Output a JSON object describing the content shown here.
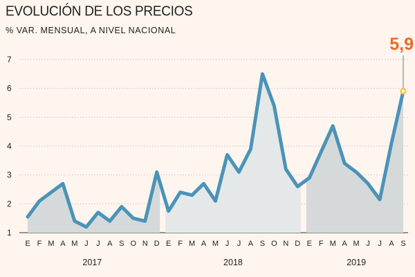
{
  "header": {
    "title": "EVOLUCIÓN DE LOS PRECIOS",
    "subtitle": "% VAR. MENSUAL, A NIVEL NACIONAL"
  },
  "chart_data": {
    "type": "area",
    "title": "EVOLUCIÓN DE LOS PRECIOS",
    "subtitle": "% VAR. MENSUAL, A NIVEL NACIONAL",
    "x": [
      "E",
      "F",
      "M",
      "A",
      "M",
      "J",
      "J",
      "A",
      "S",
      "O",
      "N",
      "D",
      "E",
      "F",
      "M",
      "A",
      "M",
      "J",
      "J",
      "A",
      "S",
      "O",
      "N",
      "D",
      "E",
      "F",
      "M",
      "A",
      "M",
      "J",
      "J",
      "A",
      "S"
    ],
    "years": [
      {
        "label": "2017",
        "start": 0,
        "end": 11
      },
      {
        "label": "2018",
        "start": 12,
        "end": 23
      },
      {
        "label": "2019",
        "start": 24,
        "end": 32
      }
    ],
    "series": [
      {
        "values": [
          1.55,
          2.1,
          2.4,
          2.7,
          1.4,
          1.2,
          1.7,
          1.4,
          1.9,
          1.5,
          1.4,
          3.1,
          1.75,
          2.4,
          2.3,
          2.7,
          2.1,
          3.7,
          3.1,
          3.9,
          6.5,
          5.4,
          3.2,
          2.6,
          2.9,
          3.8,
          4.7,
          3.4,
          3.1,
          2.7,
          2.15,
          4.1,
          5.9
        ]
      }
    ],
    "yticks": [
      1,
      2,
      3,
      4,
      5,
      6,
      7
    ],
    "ylim": [
      1,
      7
    ],
    "callout": {
      "label": "5,9",
      "index": 32,
      "value": 5.9
    },
    "colors": {
      "line": "#4a93b8",
      "fill_dark": "#d5d9da",
      "fill_light": "#e4e8e8",
      "grid": "#c8c8c8",
      "marker": "#f2c230",
      "callout": "#ee6a24"
    }
  }
}
